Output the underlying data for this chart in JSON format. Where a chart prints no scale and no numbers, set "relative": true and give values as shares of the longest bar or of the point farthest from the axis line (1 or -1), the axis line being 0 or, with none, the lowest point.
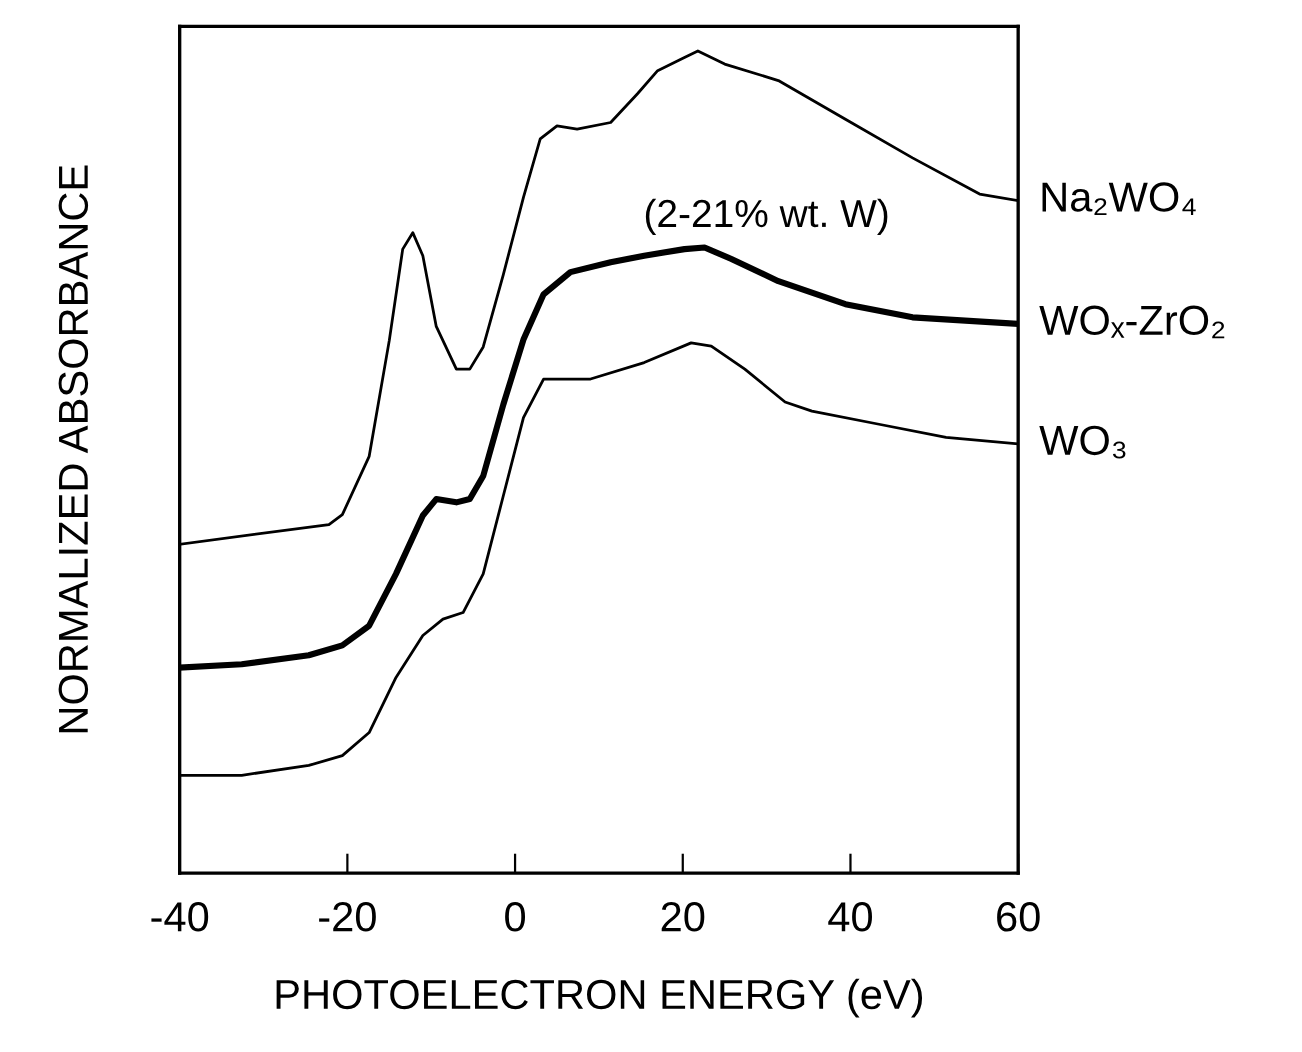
{
  "chart_data": {
    "type": "line",
    "xlabel": "PHOTOELECTRON ENERGY (eV)",
    "ylabel": "NORMALIZED ABSORBANCE",
    "relative": true,
    "xlim": [
      -40,
      60
    ],
    "xticks": [
      -40,
      -20,
      0,
      20,
      40,
      60
    ],
    "grid": false,
    "marker": "none",
    "line_style": "solid",
    "annotations": [
      "(2-21% wt. W)"
    ],
    "series": [
      {
        "name": "Na₂WO₄",
        "color": "#000000",
        "x": [
          -40,
          -22.2,
          -20.6,
          -17.4,
          -15.0,
          -13.4,
          -12.2,
          -11.0,
          -9.4,
          -7.0,
          -5.4,
          -3.8,
          -1.4,
          1.0,
          3.0,
          5.0,
          7.4,
          11.4,
          14.6,
          17.0,
          20.2,
          21.8,
          25.0,
          31.4,
          39.4,
          47.4,
          55.4,
          60
        ],
        "values": [
          0.4,
          0.424,
          0.436,
          0.507,
          0.648,
          0.759,
          0.779,
          0.751,
          0.665,
          0.613,
          0.613,
          0.64,
          0.728,
          0.822,
          0.893,
          0.909,
          0.905,
          0.913,
          0.948,
          0.976,
          0.992,
          1.0,
          0.984,
          0.964,
          0.917,
          0.87,
          0.826,
          0.818
        ]
      },
      {
        "name": "WOₓ-ZrO₂",
        "color": "#000000",
        "x": [
          -40,
          -32.6,
          -24.6,
          -20.6,
          -17.4,
          -14.2,
          -11.0,
          -9.4,
          -7.0,
          -5.4,
          -3.8,
          -1.4,
          1.0,
          3.4,
          6.6,
          11.4,
          15.4,
          20.2,
          22.6,
          25.8,
          31.4,
          39.4,
          47.4,
          60
        ],
        "values": [
          0.25,
          0.254,
          0.265,
          0.277,
          0.301,
          0.364,
          0.435,
          0.455,
          0.451,
          0.455,
          0.483,
          0.57,
          0.649,
          0.704,
          0.731,
          0.743,
          0.751,
          0.759,
          0.761,
          0.747,
          0.72,
          0.692,
          0.676,
          0.668
        ]
      },
      {
        "name": "WO₃",
        "color": "#000000",
        "x": [
          -40,
          -32.6,
          -24.6,
          -20.6,
          -17.4,
          -14.2,
          -11.0,
          -8.6,
          -6.2,
          -3.8,
          -1.4,
          1.0,
          3.4,
          9.0,
          15.4,
          21.0,
          23.4,
          27.4,
          32.2,
          35.4,
          43.4,
          51.4,
          60
        ],
        "values": [
          0.119,
          0.119,
          0.131,
          0.143,
          0.171,
          0.238,
          0.289,
          0.309,
          0.317,
          0.364,
          0.459,
          0.554,
          0.601,
          0.601,
          0.621,
          0.645,
          0.641,
          0.613,
          0.573,
          0.562,
          0.546,
          0.53,
          0.522
        ]
      }
    ]
  }
}
